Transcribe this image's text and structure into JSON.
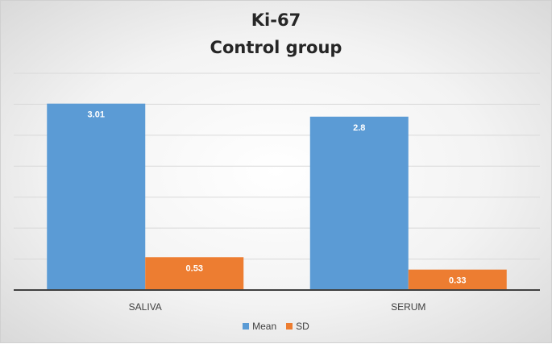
{
  "chart_data": {
    "type": "bar",
    "title": [
      "Ki-67",
      "Control group"
    ],
    "categories": [
      "SALIVA",
      "SERUM"
    ],
    "series": [
      {
        "name": "Mean",
        "values": [
          3.01,
          2.8
        ],
        "color": "#5b9bd5",
        "labels": [
          "3.01",
          "2.8"
        ]
      },
      {
        "name": "SD",
        "values": [
          0.53,
          0.33
        ],
        "color": "#ed7d31",
        "labels": [
          "0.53",
          "0.33"
        ]
      }
    ],
    "ylim": [
      0,
      3.5
    ],
    "grid": true,
    "legend_position": "bottom"
  }
}
